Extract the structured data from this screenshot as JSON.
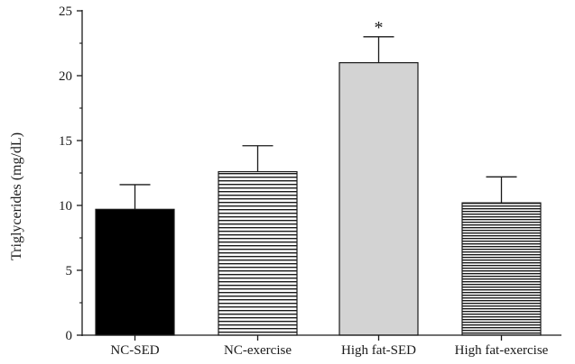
{
  "chart_data": {
    "type": "bar",
    "title": "",
    "xlabel": "",
    "ylabel": "Triglycerides (mg/dL)",
    "ylim": [
      0,
      25
    ],
    "yticks": [
      0,
      5,
      10,
      15,
      20,
      25
    ],
    "grid": false,
    "categories": [
      "NC-SED",
      "NC-exercise",
      "High fat-SED",
      "High fat-exercise"
    ],
    "values": [
      9.7,
      12.6,
      21.0,
      10.2
    ],
    "errors": [
      1.9,
      2.0,
      2.0,
      2.0
    ],
    "annotations": [
      "",
      "",
      "*",
      ""
    ],
    "fills": [
      "solid-black",
      "horizontal-lines-wide",
      "solid-light-gray",
      "horizontal-lines-dense"
    ],
    "colors": {
      "black": "#000000",
      "light_gray": "#d3d3d3",
      "line": "#1a1a1a"
    }
  }
}
